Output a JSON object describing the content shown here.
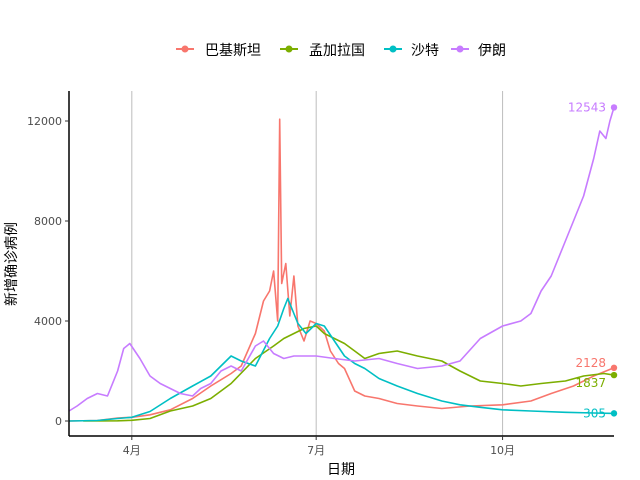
{
  "chart_data": {
    "type": "line",
    "xlabel": "日期",
    "ylabel": "新增确诊病例",
    "x_range": [
      "2020-03-01",
      "2020-11-25"
    ],
    "ylim": [
      -600,
      13200
    ],
    "y_ticks": [
      0,
      4000,
      8000,
      12000
    ],
    "y_tick_labels": [
      "0",
      "4000",
      "8000",
      "12000"
    ],
    "x_ticks": [
      "2020-04-01",
      "2020-07-01",
      "2020-10-01"
    ],
    "x_tick_labels": [
      "4月",
      "7月",
      "10月"
    ],
    "grid": "vertical gridlines at month ticks",
    "legend_position": "top",
    "series": [
      {
        "name": "巴基斯坦",
        "color": "#F8766D",
        "end_label": "2128",
        "end_value": 2128,
        "points": [
          [
            "2020-03-01",
            0
          ],
          [
            "2020-03-15",
            20
          ],
          [
            "2020-03-25",
            120
          ],
          [
            "2020-04-01",
            150
          ],
          [
            "2020-04-10",
            250
          ],
          [
            "2020-04-20",
            450
          ],
          [
            "2020-05-01",
            900
          ],
          [
            "2020-05-10",
            1400
          ],
          [
            "2020-05-20",
            1900
          ],
          [
            "2020-05-25",
            2200
          ],
          [
            "2020-06-01",
            3500
          ],
          [
            "2020-06-05",
            4800
          ],
          [
            "2020-06-08",
            5200
          ],
          [
            "2020-06-10",
            6000
          ],
          [
            "2020-06-12",
            4000
          ],
          [
            "2020-06-13",
            12073
          ],
          [
            "2020-06-14",
            5500
          ],
          [
            "2020-06-16",
            6300
          ],
          [
            "2020-06-18",
            4200
          ],
          [
            "2020-06-20",
            5800
          ],
          [
            "2020-06-22",
            3800
          ],
          [
            "2020-06-25",
            3200
          ],
          [
            "2020-06-28",
            4000
          ],
          [
            "2020-07-01",
            3900
          ],
          [
            "2020-07-05",
            3600
          ],
          [
            "2020-07-08",
            2800
          ],
          [
            "2020-07-12",
            2300
          ],
          [
            "2020-07-15",
            2100
          ],
          [
            "2020-07-20",
            1200
          ],
          [
            "2020-07-25",
            1000
          ],
          [
            "2020-08-01",
            900
          ],
          [
            "2020-08-10",
            700
          ],
          [
            "2020-08-20",
            600
          ],
          [
            "2020-09-01",
            500
          ],
          [
            "2020-09-15",
            600
          ],
          [
            "2020-10-01",
            650
          ],
          [
            "2020-10-15",
            800
          ],
          [
            "2020-10-25",
            1100
          ],
          [
            "2020-11-05",
            1400
          ],
          [
            "2020-11-15",
            1800
          ],
          [
            "2020-11-25",
            2128
          ]
        ]
      },
      {
        "name": "孟加拉国",
        "color": "#7CAE00",
        "end_label": "1837",
        "end_value": 1837,
        "points": [
          [
            "2020-03-08",
            0
          ],
          [
            "2020-03-25",
            10
          ],
          [
            "2020-04-01",
            30
          ],
          [
            "2020-04-10",
            100
          ],
          [
            "2020-04-20",
            400
          ],
          [
            "2020-05-01",
            600
          ],
          [
            "2020-05-10",
            900
          ],
          [
            "2020-05-20",
            1500
          ],
          [
            "2020-06-01",
            2500
          ],
          [
            "2020-06-10",
            3000
          ],
          [
            "2020-06-15",
            3300
          ],
          [
            "2020-06-20",
            3500
          ],
          [
            "2020-06-25",
            3700
          ],
          [
            "2020-07-01",
            3800
          ],
          [
            "2020-07-05",
            3500
          ],
          [
            "2020-07-10",
            3300
          ],
          [
            "2020-07-15",
            3100
          ],
          [
            "2020-07-20",
            2800
          ],
          [
            "2020-07-25",
            2500
          ],
          [
            "2020-08-01",
            2700
          ],
          [
            "2020-08-10",
            2800
          ],
          [
            "2020-08-20",
            2600
          ],
          [
            "2020-09-01",
            2400
          ],
          [
            "2020-09-10",
            2000
          ],
          [
            "2020-09-20",
            1600
          ],
          [
            "2020-10-01",
            1500
          ],
          [
            "2020-10-10",
            1400
          ],
          [
            "2020-10-20",
            1500
          ],
          [
            "2020-11-01",
            1600
          ],
          [
            "2020-11-10",
            1800
          ],
          [
            "2020-11-20",
            1900
          ],
          [
            "2020-11-25",
            1837
          ]
        ]
      },
      {
        "name": "沙特",
        "color": "#00BFC4",
        "end_label": "305",
        "end_value": 305,
        "points": [
          [
            "2020-03-01",
            0
          ],
          [
            "2020-03-15",
            20
          ],
          [
            "2020-03-25",
            100
          ],
          [
            "2020-04-01",
            150
          ],
          [
            "2020-04-10",
            380
          ],
          [
            "2020-04-20",
            900
          ],
          [
            "2020-05-01",
            1400
          ],
          [
            "2020-05-10",
            1800
          ],
          [
            "2020-05-20",
            2600
          ],
          [
            "2020-05-25",
            2400
          ],
          [
            "2020-06-01",
            2200
          ],
          [
            "2020-06-08",
            3300
          ],
          [
            "2020-06-12",
            3800
          ],
          [
            "2020-06-15",
            4500
          ],
          [
            "2020-06-17",
            4900
          ],
          [
            "2020-06-22",
            3900
          ],
          [
            "2020-06-26",
            3500
          ],
          [
            "2020-07-01",
            3900
          ],
          [
            "2020-07-05",
            3800
          ],
          [
            "2020-07-10",
            3200
          ],
          [
            "2020-07-15",
            2600
          ],
          [
            "2020-07-20",
            2300
          ],
          [
            "2020-07-25",
            2100
          ],
          [
            "2020-08-01",
            1700
          ],
          [
            "2020-08-10",
            1400
          ],
          [
            "2020-08-20",
            1100
          ],
          [
            "2020-09-01",
            800
          ],
          [
            "2020-09-10",
            650
          ],
          [
            "2020-09-20",
            550
          ],
          [
            "2020-10-01",
            450
          ],
          [
            "2020-10-15",
            400
          ],
          [
            "2020-11-01",
            350
          ],
          [
            "2020-11-15",
            320
          ],
          [
            "2020-11-25",
            305
          ]
        ]
      },
      {
        "name": "伊朗",
        "color": "#C77CFF",
        "end_label": "12543",
        "end_value": 12543,
        "points": [
          [
            "2020-03-01",
            400
          ],
          [
            "2020-03-05",
            600
          ],
          [
            "2020-03-10",
            900
          ],
          [
            "2020-03-15",
            1100
          ],
          [
            "2020-03-20",
            1000
          ],
          [
            "2020-03-25",
            2000
          ],
          [
            "2020-03-28",
            2900
          ],
          [
            "2020-03-31",
            3100
          ],
          [
            "2020-04-05",
            2500
          ],
          [
            "2020-04-10",
            1800
          ],
          [
            "2020-04-15",
            1500
          ],
          [
            "2020-04-20",
            1300
          ],
          [
            "2020-04-25",
            1100
          ],
          [
            "2020-05-01",
            1000
          ],
          [
            "2020-05-05",
            1300
          ],
          [
            "2020-05-10",
            1500
          ],
          [
            "2020-05-15",
            2000
          ],
          [
            "2020-05-20",
            2200
          ],
          [
            "2020-05-25",
            2000
          ],
          [
            "2020-06-01",
            3000
          ],
          [
            "2020-06-05",
            3200
          ],
          [
            "2020-06-10",
            2700
          ],
          [
            "2020-06-15",
            2500
          ],
          [
            "2020-06-20",
            2600
          ],
          [
            "2020-07-01",
            2600
          ],
          [
            "2020-07-10",
            2500
          ],
          [
            "2020-07-20",
            2400
          ],
          [
            "2020-08-01",
            2500
          ],
          [
            "2020-08-10",
            2300
          ],
          [
            "2020-08-20",
            2100
          ],
          [
            "2020-09-01",
            2200
          ],
          [
            "2020-09-10",
            2400
          ],
          [
            "2020-09-20",
            3300
          ],
          [
            "2020-10-01",
            3800
          ],
          [
            "2020-10-10",
            4000
          ],
          [
            "2020-10-15",
            4300
          ],
          [
            "2020-10-20",
            5200
          ],
          [
            "2020-10-25",
            5800
          ],
          [
            "2020-11-01",
            7200
          ],
          [
            "2020-11-05",
            8000
          ],
          [
            "2020-11-10",
            9000
          ],
          [
            "2020-11-15",
            10500
          ],
          [
            "2020-11-18",
            11600
          ],
          [
            "2020-11-21",
            11300
          ],
          [
            "2020-11-23",
            12000
          ],
          [
            "2020-11-25",
            12543
          ]
        ]
      }
    ]
  }
}
